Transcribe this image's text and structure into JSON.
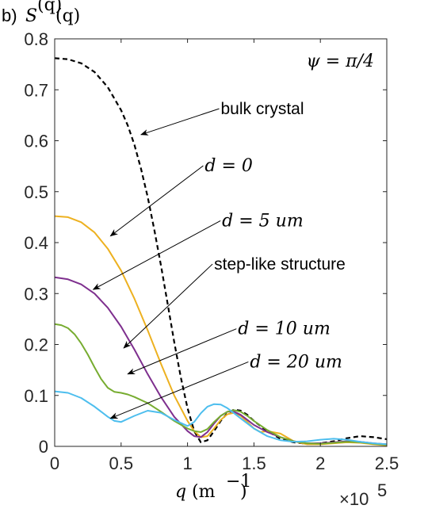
{
  "chart_data": {
    "type": "line",
    "panel_label": "b)",
    "title": "S^{(q)}(q)",
    "title_parts": {
      "base": "S",
      "sup": "(q)",
      "arg": "(q)"
    },
    "xlabel": "q (m⁻¹)",
    "xlabel_parts": {
      "var": "q",
      "unit": "(m",
      "exp": "−1",
      "close": ")"
    },
    "x_multiplier": "×10",
    "x_multiplier_exp": "5",
    "xlim": [
      0,
      2.5
    ],
    "ylim": [
      0,
      0.8
    ],
    "xticks": [
      "0",
      "0.5",
      "1",
      "1.5",
      "2",
      "2.5"
    ],
    "yticks": [
      "0",
      "0.1",
      "0.2",
      "0.3",
      "0.4",
      "0.5",
      "0.6",
      "0.7",
      "0.8"
    ],
    "grid": false,
    "box": true,
    "parameter_label": "ψ = π/4",
    "series": [
      {
        "name": "bulk crystal",
        "color": "#000000",
        "dash": true,
        "x": [
          0,
          0.1,
          0.2,
          0.3,
          0.4,
          0.5,
          0.55,
          0.6,
          0.65,
          0.7,
          0.75,
          0.8,
          0.85,
          0.9,
          0.95,
          1.0,
          1.05,
          1.1,
          1.15,
          1.2,
          1.25,
          1.3,
          1.35,
          1.4,
          1.45,
          1.5,
          1.6,
          1.7,
          1.8,
          1.9,
          2.0,
          2.1,
          2.2,
          2.3,
          2.4,
          2.5
        ],
        "y": [
          0.762,
          0.76,
          0.752,
          0.735,
          0.705,
          0.66,
          0.63,
          0.592,
          0.545,
          0.49,
          0.425,
          0.355,
          0.28,
          0.205,
          0.135,
          0.075,
          0.03,
          0.008,
          0.012,
          0.03,
          0.05,
          0.065,
          0.072,
          0.07,
          0.062,
          0.05,
          0.03,
          0.015,
          0.008,
          0.005,
          0.006,
          0.01,
          0.016,
          0.02,
          0.018,
          0.014
        ]
      },
      {
        "name": "d = 0",
        "color": "#EDB120",
        "dash": false,
        "x": [
          0,
          0.1,
          0.2,
          0.3,
          0.4,
          0.5,
          0.6,
          0.7,
          0.8,
          0.9,
          1.0,
          1.05,
          1.1,
          1.15,
          1.2,
          1.25,
          1.3,
          1.35,
          1.4,
          1.45,
          1.5,
          1.55,
          1.6,
          1.7,
          1.8,
          1.9,
          2.0,
          2.1,
          2.2,
          2.3,
          2.4,
          2.5
        ],
        "y": [
          0.452,
          0.45,
          0.44,
          0.42,
          0.388,
          0.345,
          0.29,
          0.228,
          0.162,
          0.1,
          0.05,
          0.03,
          0.018,
          0.02,
          0.035,
          0.052,
          0.063,
          0.066,
          0.06,
          0.048,
          0.035,
          0.028,
          0.03,
          0.025,
          0.01,
          0.004,
          0.004,
          0.006,
          0.008,
          0.007,
          0.004,
          0.002
        ]
      },
      {
        "name": "d = 5 um",
        "color": "#7E2F8E",
        "dash": false,
        "x": [
          0,
          0.1,
          0.2,
          0.3,
          0.4,
          0.5,
          0.6,
          0.7,
          0.8,
          0.9,
          1.0,
          1.05,
          1.1,
          1.15,
          1.2,
          1.25,
          1.3,
          1.35,
          1.4,
          1.45,
          1.5,
          1.6,
          1.7,
          1.8,
          1.9,
          2.0,
          2.1,
          2.2,
          2.3,
          2.4,
          2.5
        ],
        "y": [
          0.332,
          0.328,
          0.318,
          0.3,
          0.272,
          0.235,
          0.19,
          0.142,
          0.097,
          0.058,
          0.03,
          0.02,
          0.018,
          0.028,
          0.045,
          0.06,
          0.068,
          0.068,
          0.062,
          0.052,
          0.042,
          0.028,
          0.018,
          0.01,
          0.006,
          0.006,
          0.008,
          0.01,
          0.009,
          0.006,
          0.004
        ]
      },
      {
        "name": "d = 10 um",
        "color": "#77AC30",
        "dash": false,
        "x": [
          0,
          0.05,
          0.1,
          0.15,
          0.2,
          0.25,
          0.3,
          0.35,
          0.4,
          0.45,
          0.5,
          0.55,
          0.6,
          0.7,
          0.8,
          0.9,
          1.0,
          1.05,
          1.1,
          1.15,
          1.2,
          1.25,
          1.3,
          1.35,
          1.4,
          1.45,
          1.5,
          1.6,
          1.7,
          1.8,
          1.9,
          2.0,
          2.1,
          2.2,
          2.3,
          2.4,
          2.5
        ],
        "y": [
          0.24,
          0.238,
          0.232,
          0.22,
          0.202,
          0.18,
          0.155,
          0.132,
          0.115,
          0.107,
          0.105,
          0.102,
          0.097,
          0.085,
          0.068,
          0.05,
          0.035,
          0.03,
          0.028,
          0.034,
          0.048,
          0.06,
          0.068,
          0.071,
          0.068,
          0.06,
          0.05,
          0.032,
          0.018,
          0.01,
          0.006,
          0.005,
          0.007,
          0.009,
          0.008,
          0.005,
          0.003
        ]
      },
      {
        "name": "d = 20 um",
        "color": "#4DBEEE",
        "dash": false,
        "x": [
          0,
          0.1,
          0.2,
          0.3,
          0.4,
          0.45,
          0.5,
          0.6,
          0.7,
          0.8,
          0.9,
          1.0,
          1.05,
          1.1,
          1.15,
          1.2,
          1.25,
          1.3,
          1.35,
          1.4,
          1.45,
          1.5,
          1.6,
          1.7,
          1.8,
          1.9,
          2.0,
          2.1,
          2.2,
          2.3,
          2.4,
          2.5
        ],
        "y": [
          0.108,
          0.105,
          0.095,
          0.078,
          0.058,
          0.05,
          0.048,
          0.06,
          0.07,
          0.066,
          0.052,
          0.04,
          0.048,
          0.065,
          0.078,
          0.083,
          0.082,
          0.075,
          0.065,
          0.055,
          0.045,
          0.035,
          0.02,
          0.012,
          0.009,
          0.01,
          0.013,
          0.015,
          0.013,
          0.009,
          0.006,
          0.004
        ]
      }
    ],
    "annotations": [
      {
        "text": "bulk crystal",
        "style": "text",
        "x": 1.25,
        "y": 0.652,
        "arrow_to": [
          0.65,
          0.612
        ]
      },
      {
        "text": "d = 0",
        "style": "math",
        "x": 1.13,
        "y": 0.54,
        "arrow_to": [
          0.42,
          0.413
        ]
      },
      {
        "text": "d = 5 um",
        "style": "math",
        "x": 1.26,
        "y": 0.432,
        "arrow_to": [
          0.29,
          0.308
        ]
      },
      {
        "text": "step-like structure",
        "style": "text",
        "x": 1.2,
        "y": 0.347,
        "arrow_to": [
          0.52,
          0.193
        ]
      },
      {
        "text": "d = 10 um",
        "style": "math",
        "x": 1.38,
        "y": 0.22,
        "arrow_to": [
          0.55,
          0.142
        ]
      },
      {
        "text": "d = 20 um",
        "style": "math",
        "x": 1.47,
        "y": 0.155,
        "arrow_to": [
          0.42,
          0.055
        ]
      }
    ]
  }
}
